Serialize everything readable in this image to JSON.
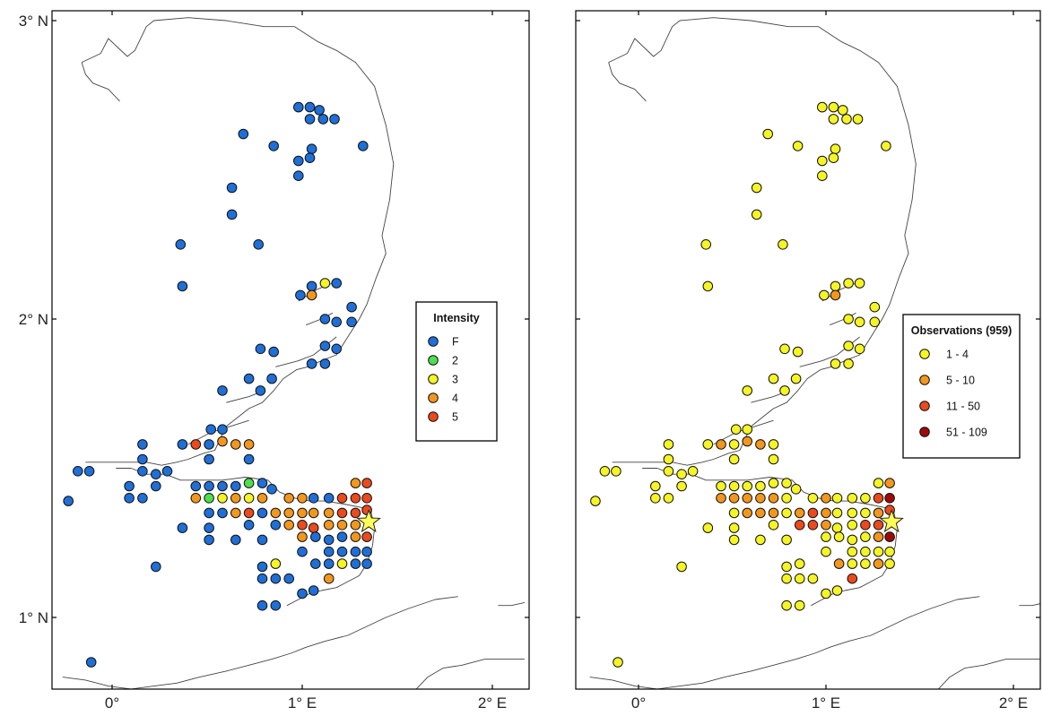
{
  "axes": {
    "x_ticks": [
      {
        "value": 0,
        "label": "0°"
      },
      {
        "value": 1,
        "label": "1° E"
      },
      {
        "value": 2,
        "label": "2° E"
      }
    ],
    "y_ticks": [
      {
        "value": 1,
        "label": "1° N"
      },
      {
        "value": 2,
        "label": "2° N"
      },
      {
        "value": 3,
        "label": "3° N"
      }
    ],
    "lon_range": [
      -0.3,
      2.17
    ],
    "lat_range": [
      0.72,
      3.04
    ]
  },
  "maps": [
    {
      "id": "intensity",
      "legend": {
        "title": "Intensity",
        "entries": [
          {
            "label": "F",
            "color": "#1f6fd6"
          },
          {
            "label": "2",
            "color": "#4de04d"
          },
          {
            "label": "3",
            "color": "#f5f526"
          },
          {
            "label": "4",
            "color": "#f2971e"
          },
          {
            "label": "5",
            "color": "#ea4a1e"
          }
        ]
      }
    },
    {
      "id": "observations",
      "legend": {
        "title": "Observations (959)",
        "entries": [
          {
            "label": "1 - 4",
            "color": "#f5f526"
          },
          {
            "label": "5 - 10",
            "color": "#f2971e"
          },
          {
            "label": "11 - 50",
            "color": "#ea4a1e"
          },
          {
            "label": "51 - 109",
            "color": "#9e0a0a"
          }
        ]
      }
    }
  ],
  "epicenter": {
    "lon": 1.35,
    "lat": 1.32,
    "color": "#ffff55"
  },
  "points": [
    {
      "lon": 0.98,
      "lat": 2.71,
      "i": "F",
      "o": 1
    },
    {
      "lon": 1.04,
      "lat": 2.71,
      "i": "F",
      "o": 1
    },
    {
      "lon": 1.09,
      "lat": 2.7,
      "i": "F",
      "o": 1
    },
    {
      "lon": 1.04,
      "lat": 2.67,
      "i": "F",
      "o": 1
    },
    {
      "lon": 1.11,
      "lat": 2.67,
      "i": "F",
      "o": 1
    },
    {
      "lon": 1.17,
      "lat": 2.67,
      "i": "F",
      "o": 1
    },
    {
      "lon": 0.69,
      "lat": 2.62,
      "i": "F",
      "o": 1
    },
    {
      "lon": 0.85,
      "lat": 2.58,
      "i": "F",
      "o": 1
    },
    {
      "lon": 1.05,
      "lat": 2.57,
      "i": "F",
      "o": 1
    },
    {
      "lon": 1.32,
      "lat": 2.58,
      "i": "F",
      "o": 1
    },
    {
      "lon": 0.98,
      "lat": 2.53,
      "i": "F",
      "o": 1
    },
    {
      "lon": 1.04,
      "lat": 2.54,
      "i": "F",
      "o": 1
    },
    {
      "lon": 0.98,
      "lat": 2.48,
      "i": "F",
      "o": 1
    },
    {
      "lon": 0.63,
      "lat": 2.44,
      "i": "F",
      "o": 1
    },
    {
      "lon": 0.63,
      "lat": 2.35,
      "i": "F",
      "o": 1
    },
    {
      "lon": 0.36,
      "lat": 2.25,
      "i": "F",
      "o": 1
    },
    {
      "lon": 0.77,
      "lat": 2.25,
      "i": "F",
      "o": 1
    },
    {
      "lon": 0.37,
      "lat": 2.11,
      "i": "F",
      "o": 1
    },
    {
      "lon": 1.05,
      "lat": 2.11,
      "i": "F",
      "o": 1
    },
    {
      "lon": 1.12,
      "lat": 2.12,
      "i": "3",
      "o": 1
    },
    {
      "lon": 1.18,
      "lat": 2.12,
      "i": "F",
      "o": 1
    },
    {
      "lon": 0.99,
      "lat": 2.08,
      "i": "F",
      "o": 1
    },
    {
      "lon": 1.05,
      "lat": 2.08,
      "i": "4",
      "o": 5
    },
    {
      "lon": 1.26,
      "lat": 2.04,
      "i": "F",
      "o": 1
    },
    {
      "lon": 1.12,
      "lat": 2.0,
      "i": "F",
      "o": 1
    },
    {
      "lon": 1.18,
      "lat": 1.99,
      "i": "F",
      "o": 1
    },
    {
      "lon": 1.26,
      "lat": 1.99,
      "i": "F",
      "o": 1
    },
    {
      "lon": 1.12,
      "lat": 1.91,
      "i": "F",
      "o": 1
    },
    {
      "lon": 1.18,
      "lat": 1.9,
      "i": "F",
      "o": 1
    },
    {
      "lon": 0.78,
      "lat": 1.9,
      "i": "F",
      "o": 1
    },
    {
      "lon": 0.85,
      "lat": 1.89,
      "i": "F",
      "o": 1
    },
    {
      "lon": 1.05,
      "lat": 1.85,
      "i": "F",
      "o": 1
    },
    {
      "lon": 1.12,
      "lat": 1.85,
      "i": "F",
      "o": 1
    },
    {
      "lon": 0.72,
      "lat": 1.8,
      "i": "F",
      "o": 1
    },
    {
      "lon": 0.84,
      "lat": 1.8,
      "i": "F",
      "o": 1
    },
    {
      "lon": 0.58,
      "lat": 1.76,
      "i": "F",
      "o": 1
    },
    {
      "lon": 0.78,
      "lat": 1.76,
      "i": "F",
      "o": 1
    },
    {
      "lon": 0.52,
      "lat": 1.63,
      "i": "F",
      "o": 1
    },
    {
      "lon": 0.58,
      "lat": 1.63,
      "i": "F",
      "o": 1
    },
    {
      "lon": 0.37,
      "lat": 1.58,
      "i": "F",
      "o": 1
    },
    {
      "lon": 0.44,
      "lat": 1.58,
      "i": "5",
      "o": 5
    },
    {
      "lon": 0.51,
      "lat": 1.58,
      "i": "F",
      "o": 1
    },
    {
      "lon": 0.58,
      "lat": 1.59,
      "i": "4",
      "o": 5
    },
    {
      "lon": 0.65,
      "lat": 1.58,
      "i": "4",
      "o": 5
    },
    {
      "lon": 0.72,
      "lat": 1.58,
      "i": "4",
      "o": 1
    },
    {
      "lon": 0.16,
      "lat": 1.58,
      "i": "F",
      "o": 1
    },
    {
      "lon": 0.16,
      "lat": 1.53,
      "i": "F",
      "o": 1
    },
    {
      "lon": 0.51,
      "lat": 1.53,
      "i": "F",
      "o": 1
    },
    {
      "lon": 0.72,
      "lat": 1.53,
      "i": "F",
      "o": 1
    },
    {
      "lon": -0.18,
      "lat": 1.49,
      "i": "F",
      "o": 1
    },
    {
      "lon": -0.12,
      "lat": 1.49,
      "i": "F",
      "o": 1
    },
    {
      "lon": 0.16,
      "lat": 1.49,
      "i": "F",
      "o": 1
    },
    {
      "lon": 0.23,
      "lat": 1.48,
      "i": "F",
      "o": 1
    },
    {
      "lon": 0.29,
      "lat": 1.49,
      "i": "F",
      "o": 1
    },
    {
      "lon": 0.09,
      "lat": 1.44,
      "i": "F",
      "o": 1
    },
    {
      "lon": 0.23,
      "lat": 1.44,
      "i": "F",
      "o": 1
    },
    {
      "lon": 0.44,
      "lat": 1.44,
      "i": "F",
      "o": 1
    },
    {
      "lon": 0.51,
      "lat": 1.44,
      "i": "F",
      "o": 1
    },
    {
      "lon": 0.58,
      "lat": 1.44,
      "i": "F",
      "o": 1
    },
    {
      "lon": 0.65,
      "lat": 1.44,
      "i": "F",
      "o": 1
    },
    {
      "lon": 0.72,
      "lat": 1.45,
      "i": "2",
      "o": 1
    },
    {
      "lon": 0.79,
      "lat": 1.45,
      "i": "F",
      "o": 1
    },
    {
      "lon": 0.84,
      "lat": 1.43,
      "i": "F",
      "o": 1
    },
    {
      "lon": 1.28,
      "lat": 1.45,
      "i": "4",
      "o": 1
    },
    {
      "lon": 1.34,
      "lat": 1.45,
      "i": "5",
      "o": 5
    },
    {
      "lon": 0.09,
      "lat": 1.4,
      "i": "F",
      "o": 1
    },
    {
      "lon": 0.16,
      "lat": 1.4,
      "i": "F",
      "o": 1
    },
    {
      "lon": 0.44,
      "lat": 1.4,
      "i": "4",
      "o": 5
    },
    {
      "lon": 0.51,
      "lat": 1.4,
      "i": "2",
      "o": 5
    },
    {
      "lon": 0.58,
      "lat": 1.4,
      "i": "3",
      "o": 5
    },
    {
      "lon": 0.65,
      "lat": 1.4,
      "i": "4",
      "o": 5
    },
    {
      "lon": 0.72,
      "lat": 1.4,
      "i": "3",
      "o": 5
    },
    {
      "lon": 0.79,
      "lat": 1.4,
      "i": "4",
      "o": 1
    },
    {
      "lon": 0.93,
      "lat": 1.4,
      "i": "4",
      "o": 1
    },
    {
      "lon": 1.0,
      "lat": 1.4,
      "i": "4",
      "o": 5
    },
    {
      "lon": 1.06,
      "lat": 1.4,
      "i": "F",
      "o": 1
    },
    {
      "lon": 1.14,
      "lat": 1.4,
      "i": "F",
      "o": 1
    },
    {
      "lon": 1.21,
      "lat": 1.4,
      "i": "5",
      "o": 1
    },
    {
      "lon": 1.28,
      "lat": 1.4,
      "i": "5",
      "o": 11
    },
    {
      "lon": 1.34,
      "lat": 1.4,
      "i": "5",
      "o": 51
    },
    {
      "lon": -0.23,
      "lat": 1.39,
      "i": "F",
      "o": 1
    },
    {
      "lon": 0.51,
      "lat": 1.35,
      "i": "F",
      "o": 1
    },
    {
      "lon": 0.58,
      "lat": 1.35,
      "i": "F",
      "o": 5
    },
    {
      "lon": 0.65,
      "lat": 1.35,
      "i": "4",
      "o": 5
    },
    {
      "lon": 0.72,
      "lat": 1.35,
      "i": "5",
      "o": 5
    },
    {
      "lon": 0.79,
      "lat": 1.35,
      "i": "F",
      "o": 1
    },
    {
      "lon": 0.86,
      "lat": 1.35,
      "i": "4",
      "o": 5
    },
    {
      "lon": 0.93,
      "lat": 1.35,
      "i": "4",
      "o": 11
    },
    {
      "lon": 1.0,
      "lat": 1.35,
      "i": "4",
      "o": 5
    },
    {
      "lon": 1.06,
      "lat": 1.35,
      "i": "4",
      "o": 1
    },
    {
      "lon": 1.14,
      "lat": 1.35,
      "i": "4",
      "o": 1
    },
    {
      "lon": 1.21,
      "lat": 1.35,
      "i": "5",
      "o": 1
    },
    {
      "lon": 1.28,
      "lat": 1.35,
      "i": "5",
      "o": 5
    },
    {
      "lon": 1.34,
      "lat": 1.36,
      "i": "5",
      "o": 11
    },
    {
      "lon": 0.37,
      "lat": 1.3,
      "i": "F",
      "o": 1
    },
    {
      "lon": 0.51,
      "lat": 1.3,
      "i": "F",
      "o": 1
    },
    {
      "lon": 0.72,
      "lat": 1.31,
      "i": "F",
      "o": 1
    },
    {
      "lon": 0.86,
      "lat": 1.31,
      "i": "F",
      "o": 11
    },
    {
      "lon": 0.93,
      "lat": 1.31,
      "i": "4",
      "o": 11
    },
    {
      "lon": 1.0,
      "lat": 1.31,
      "i": "5",
      "o": 5
    },
    {
      "lon": 1.06,
      "lat": 1.3,
      "i": "5",
      "o": 1
    },
    {
      "lon": 1.14,
      "lat": 1.31,
      "i": "4",
      "o": 1
    },
    {
      "lon": 1.21,
      "lat": 1.31,
      "i": "4",
      "o": 11
    },
    {
      "lon": 1.28,
      "lat": 1.31,
      "i": "4",
      "o": 11
    },
    {
      "lon": 0.51,
      "lat": 1.26,
      "i": "F",
      "o": 1
    },
    {
      "lon": 0.65,
      "lat": 1.26,
      "i": "F",
      "o": 1
    },
    {
      "lon": 0.79,
      "lat": 1.26,
      "i": "F",
      "o": 1
    },
    {
      "lon": 1.0,
      "lat": 1.27,
      "i": "4",
      "o": 1
    },
    {
      "lon": 1.07,
      "lat": 1.27,
      "i": "F",
      "o": 1
    },
    {
      "lon": 1.14,
      "lat": 1.26,
      "i": "F",
      "o": 1
    },
    {
      "lon": 1.21,
      "lat": 1.27,
      "i": "F",
      "o": 1
    },
    {
      "lon": 1.28,
      "lat": 1.27,
      "i": "4",
      "o": 5
    },
    {
      "lon": 1.34,
      "lat": 1.27,
      "i": "5",
      "o": 51
    },
    {
      "lon": 1.0,
      "lat": 1.22,
      "i": "F",
      "o": 1
    },
    {
      "lon": 1.14,
      "lat": 1.22,
      "i": "F",
      "o": 1
    },
    {
      "lon": 1.21,
      "lat": 1.22,
      "i": "F",
      "o": 1
    },
    {
      "lon": 1.28,
      "lat": 1.22,
      "i": "F",
      "o": 1
    },
    {
      "lon": 1.34,
      "lat": 1.22,
      "i": "F",
      "o": 1
    },
    {
      "lon": 0.23,
      "lat": 1.17,
      "i": "F",
      "o": 1
    },
    {
      "lon": 0.79,
      "lat": 1.17,
      "i": "F",
      "o": 1
    },
    {
      "lon": 0.86,
      "lat": 1.18,
      "i": "3",
      "o": 1
    },
    {
      "lon": 1.07,
      "lat": 1.18,
      "i": "F",
      "o": 5
    },
    {
      "lon": 1.14,
      "lat": 1.18,
      "i": "F",
      "o": 1
    },
    {
      "lon": 1.21,
      "lat": 1.18,
      "i": "3",
      "o": 1
    },
    {
      "lon": 1.28,
      "lat": 1.18,
      "i": "F",
      "o": 5
    },
    {
      "lon": 1.34,
      "lat": 1.18,
      "i": "F",
      "o": 1
    },
    {
      "lon": 0.79,
      "lat": 1.13,
      "i": "F",
      "o": 1
    },
    {
      "lon": 0.86,
      "lat": 1.13,
      "i": "F",
      "o": 1
    },
    {
      "lon": 0.93,
      "lat": 1.13,
      "i": "F",
      "o": 1
    },
    {
      "lon": 1.14,
      "lat": 1.13,
      "i": "4",
      "o": 11
    },
    {
      "lon": 1.0,
      "lat": 1.08,
      "i": "F",
      "o": 1
    },
    {
      "lon": 1.06,
      "lat": 1.09,
      "i": "F",
      "o": 1
    },
    {
      "lon": 0.79,
      "lat": 1.04,
      "i": "F",
      "o": 1
    },
    {
      "lon": 0.86,
      "lat": 1.04,
      "i": "F",
      "o": 1
    },
    {
      "lon": -0.11,
      "lat": 0.85,
      "i": "F",
      "o": 1
    }
  ]
}
